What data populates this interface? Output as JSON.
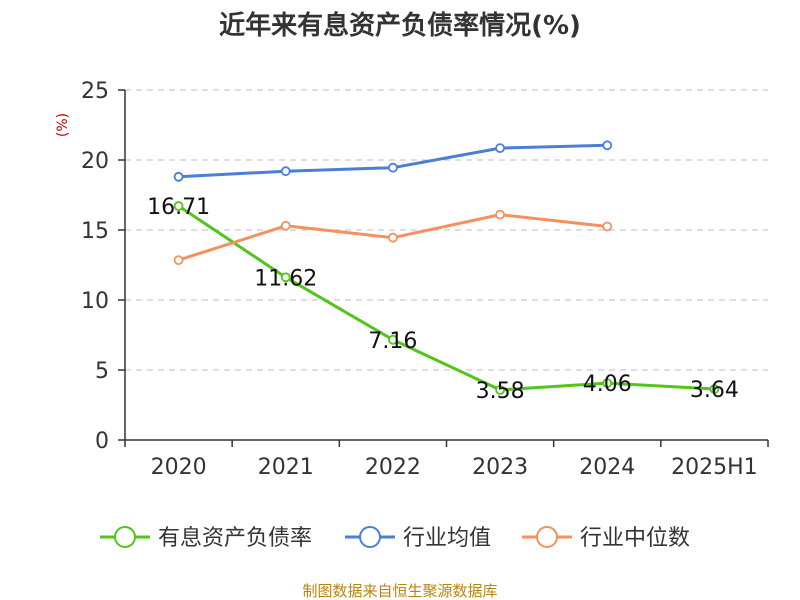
{
  "chart_data": {
    "type": "line",
    "title": "近年来有息资产负债率情况(%)",
    "ylabel": "(%)",
    "xlabel": "",
    "categories": [
      "2020",
      "2021",
      "2022",
      "2023",
      "2024",
      "2025H1"
    ],
    "ylim": [
      0,
      25
    ],
    "yticks": [
      0,
      5,
      10,
      15,
      20,
      25
    ],
    "grid": true,
    "legend_position": "bottom",
    "series": [
      {
        "name": "有息资产负债率",
        "color": "#52c41a",
        "values": [
          16.71,
          11.62,
          7.16,
          3.58,
          4.06,
          3.64
        ],
        "labels": [
          "16.71",
          "11.62",
          "7.16",
          "3.58",
          "4.06",
          "3.64"
        ]
      },
      {
        "name": "行业均值",
        "color": "#4a7fd6",
        "values": [
          18.8,
          19.2,
          19.45,
          20.85,
          21.05,
          null
        ]
      },
      {
        "name": "行业中位数",
        "color": "#f4915e",
        "values": [
          12.85,
          15.3,
          14.45,
          16.1,
          15.25,
          null
        ]
      }
    ]
  },
  "footer": {
    "source": "制图数据来自恒生聚源数据库"
  }
}
